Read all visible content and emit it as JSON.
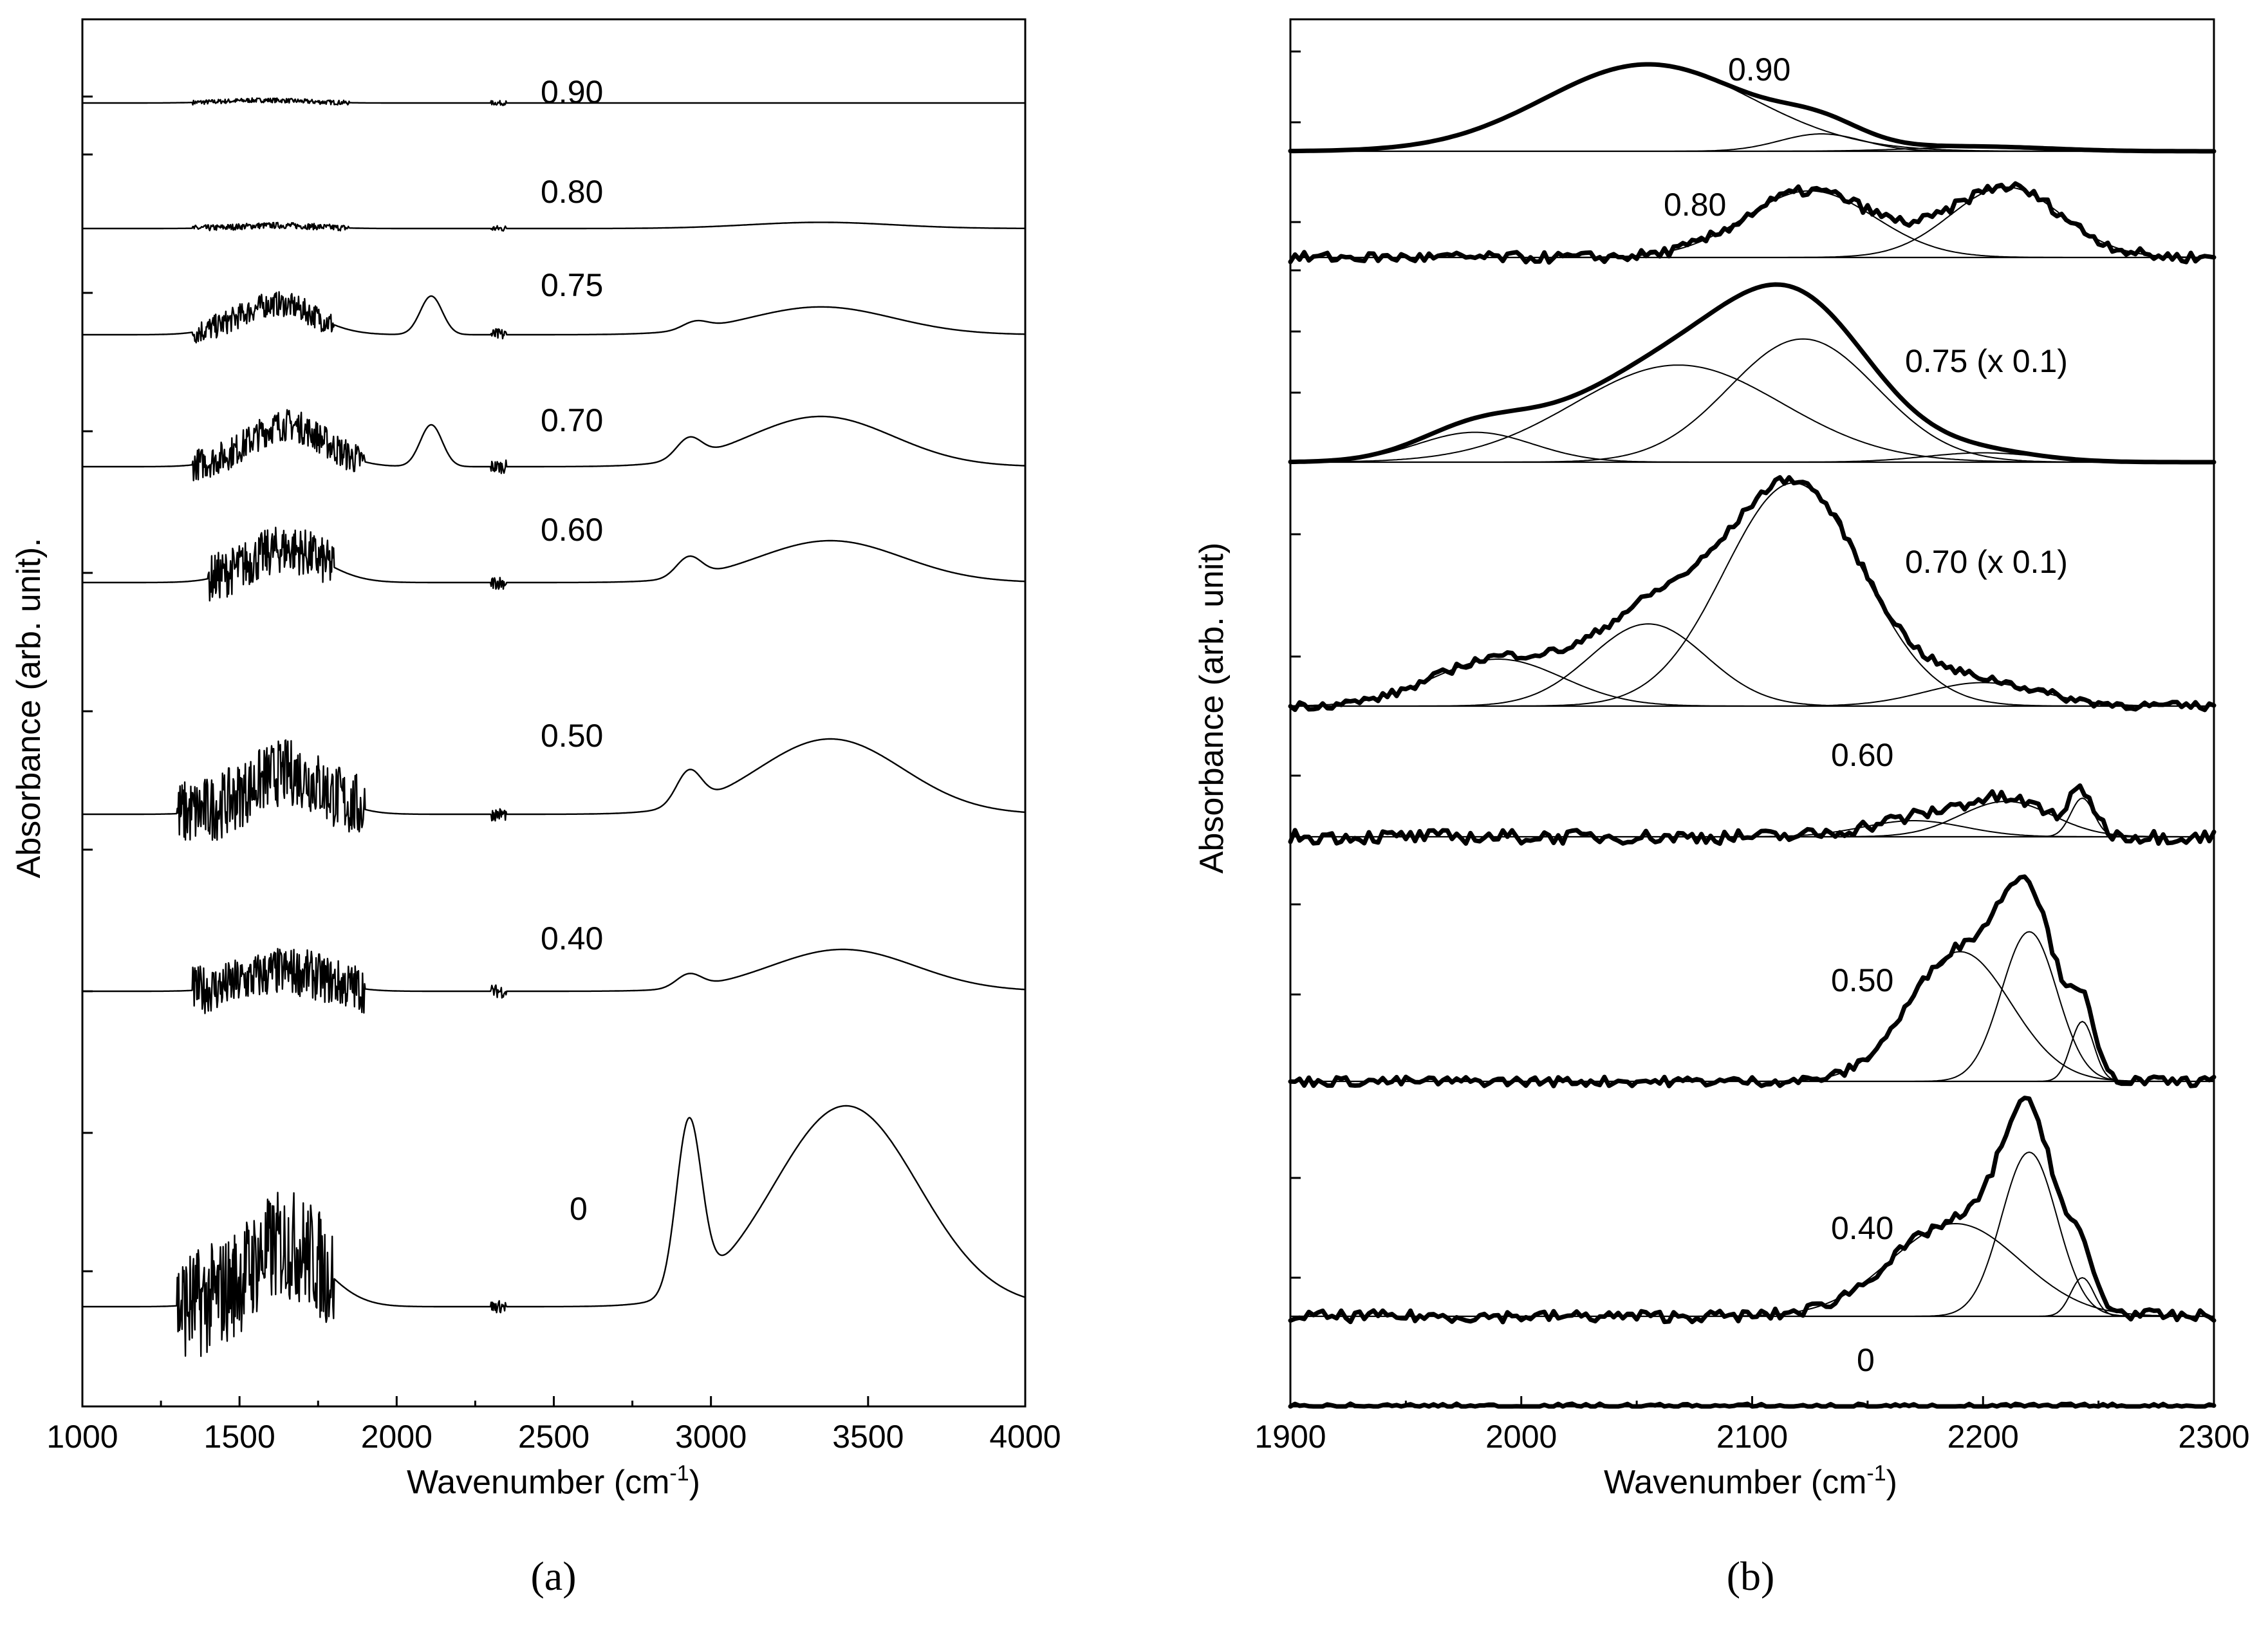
{
  "chart_data": [
    {
      "panel": "(a)",
      "type": "line",
      "xlabel": "Wavenumber (cm",
      "xlabel_sup": "-1",
      "xlabel_close": ")",
      "ylabel": "Absorbance (arb. unit).",
      "xlim": [
        1000,
        4000
      ],
      "xticks": [
        "1000",
        "1500",
        "2000",
        "2500",
        "3000",
        "3500",
        "4000"
      ],
      "series": [
        {
          "name": "0.90",
          "peaks": [
            [
              1550,
              0.03
            ],
            [
              1620,
              0.02
            ]
          ],
          "noise_region": [
            1350,
            1850
          ],
          "noise_amp": 0.05
        },
        {
          "name": "0.80",
          "peaks": [
            [
              1620,
              0.04
            ],
            [
              3350,
              0.08
            ]
          ],
          "noise_region": [
            1350,
            1850
          ],
          "noise_amp": 0.05
        },
        {
          "name": "0.75",
          "peaks": [
            [
              1620,
              0.2
            ],
            [
              2110,
              0.25
            ],
            [
              2950,
              0.05
            ],
            [
              3350,
              0.18
            ]
          ],
          "noise_region": [
            1350,
            1800
          ],
          "noise_amp": 0.1
        },
        {
          "name": "0.70",
          "peaks": [
            [
              1650,
              0.25
            ],
            [
              2110,
              0.25
            ],
            [
              2930,
              0.12
            ],
            [
              3350,
              0.3
            ]
          ],
          "noise_region": [
            1350,
            1900
          ],
          "noise_amp": 0.12
        },
        {
          "name": "0.60",
          "peaks": [
            [
              1650,
              0.2
            ],
            [
              2930,
              0.12
            ],
            [
              3380,
              0.25
            ]
          ],
          "noise_region": [
            1400,
            1800
          ],
          "noise_amp": 0.18
        },
        {
          "name": "0.50",
          "peaks": [
            [
              1650,
              0.25
            ],
            [
              2930,
              0.2
            ],
            [
              3380,
              0.45
            ]
          ],
          "noise_region": [
            1300,
            1900
          ],
          "noise_amp": 0.25
        },
        {
          "name": "0.40",
          "peaks": [
            [
              1650,
              0.12
            ],
            [
              2930,
              0.08
            ],
            [
              3420,
              0.25
            ]
          ],
          "noise_region": [
            1350,
            1900
          ],
          "noise_amp": 0.18
        },
        {
          "name": "0",
          "peaks": [
            [
              1650,
              0.4
            ],
            [
              2930,
              1.1
            ],
            [
              3430,
              1.3
            ]
          ],
          "noise_region": [
            1300,
            1800
          ],
          "noise_amp": 0.45
        }
      ]
    },
    {
      "panel": "(b)",
      "type": "line",
      "xlabel": "Wavenumber (cm",
      "xlabel_sup": "-1",
      "xlabel_close": ")",
      "ylabel": "Absorbance (arb. unit)",
      "xlim": [
        1900,
        2300
      ],
      "xticks": [
        "1900",
        "2000",
        "2100",
        "2200",
        "2300"
      ],
      "series": [
        {
          "name": "0.90",
          "components": [
            [
              2055,
              45,
              1.0
            ],
            [
              2130,
              18,
              0.2
            ],
            [
              2200,
              30,
              0.05
            ]
          ],
          "noise_amp": 0.0
        },
        {
          "name": "0.80",
          "components": [
            [
              2125,
              28,
              0.9
            ],
            [
              2210,
              24,
              0.95
            ]
          ],
          "noise_amp": 0.12
        },
        {
          "name": "0.75 (x 0.1)",
          "components": [
            [
              1980,
              25,
              0.16
            ],
            [
              2068,
              45,
              0.52
            ],
            [
              2122,
              32,
              0.66
            ],
            [
              2200,
              25,
              0.05
            ]
          ],
          "noise_amp": 0.0
        },
        {
          "name": "0.70 (x 0.1)",
          "components": [
            [
              1990,
              28,
              0.2
            ],
            [
              2055,
              25,
              0.35
            ],
            [
              2118,
              30,
              0.95
            ],
            [
              2200,
              25,
              0.1
            ]
          ],
          "noise_amp": 0.03
        },
        {
          "name": "0.60",
          "components": [
            [
              2170,
              22,
              0.25
            ],
            [
              2210,
              20,
              0.55
            ],
            [
              2243,
              5,
              0.6
            ]
          ],
          "noise_amp": 0.18
        },
        {
          "name": "0.50",
          "components": [
            [
              2190,
              22,
              0.65
            ],
            [
              2220,
              12,
              0.75
            ],
            [
              2243,
              5,
              0.3
            ]
          ],
          "noise_amp": 0.04
        },
        {
          "name": "0.40",
          "components": [
            [
              2188,
              28,
              0.48
            ],
            [
              2220,
              12,
              0.85
            ],
            [
              2243,
              5,
              0.2
            ]
          ],
          "noise_amp": 0.05
        },
        {
          "name": "0",
          "components": [],
          "noise_amp": 0.12
        }
      ]
    }
  ]
}
